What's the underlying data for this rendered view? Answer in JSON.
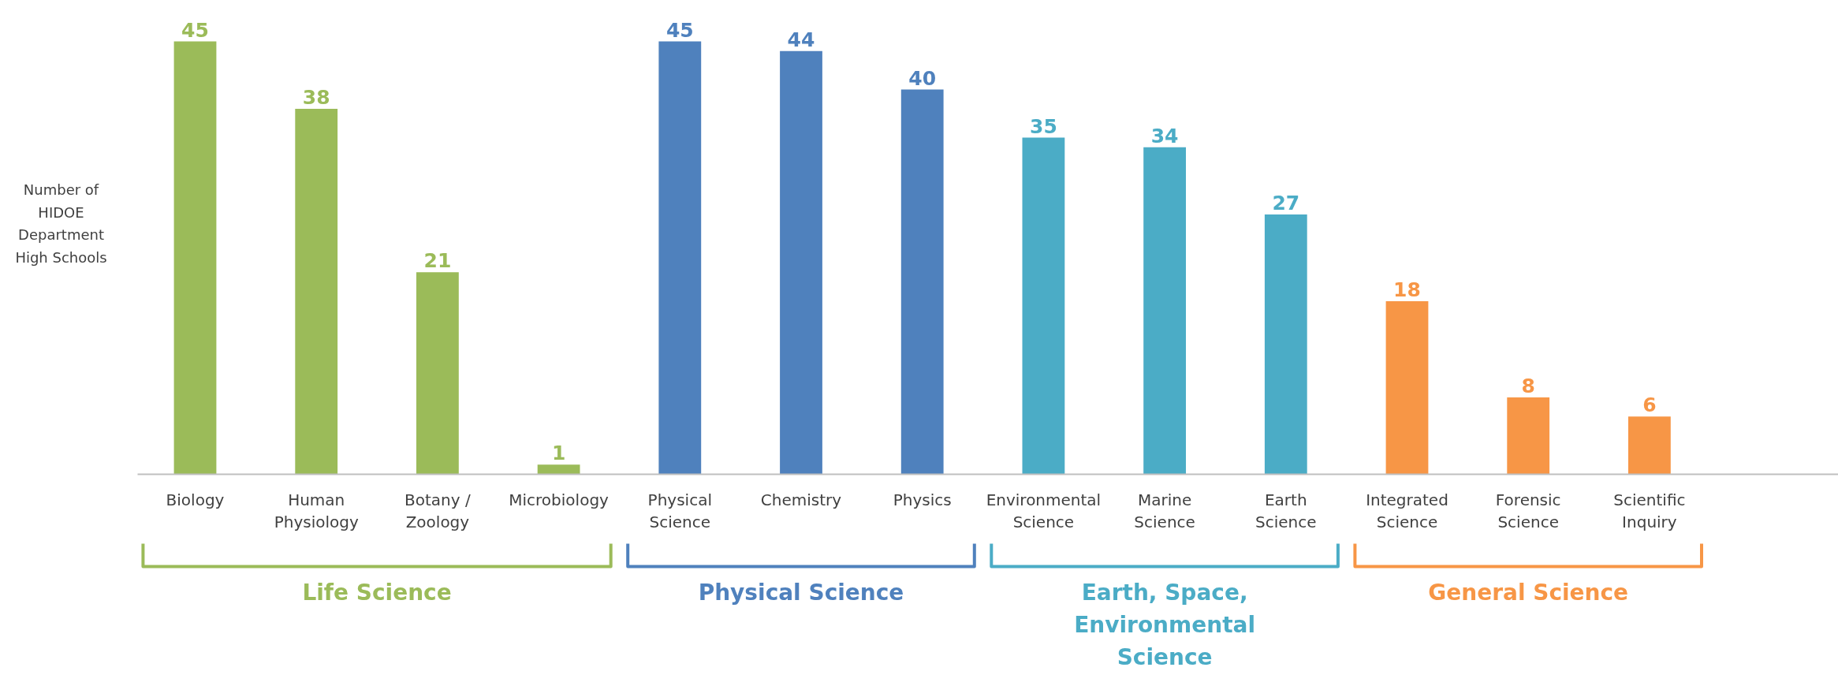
{
  "chart_data": {
    "type": "bar",
    "ylabel": "Number of\nHIDOE\nDepartment\nHigh Schools",
    "categories": [
      "Biology",
      "Human\nPhysiology",
      "Botany /\nZoology",
      "Microbiology",
      "Physical\nScience",
      "Chemistry",
      "Physics",
      "Environmental\nScience",
      "Marine\nScience",
      "Earth\nScience",
      "Integrated\nScience",
      "Forensic\nScience",
      "Scientific\nInquiry"
    ],
    "values": [
      45,
      38,
      21,
      1,
      45,
      44,
      40,
      35,
      34,
      27,
      18,
      8,
      6
    ],
    "colors": [
      "#9bbb59",
      "#9bbb59",
      "#9bbb59",
      "#9bbb59",
      "#4f81bd",
      "#4f81bd",
      "#4f81bd",
      "#4bacc6",
      "#4bacc6",
      "#4bacc6",
      "#f79646",
      "#f79646",
      "#f79646"
    ],
    "data_labels": true,
    "annotations": [
      "Life Science",
      "Physical Science",
      "Earth, Space,\nEnvironmental\nScience",
      "General Science"
    ]
  }
}
